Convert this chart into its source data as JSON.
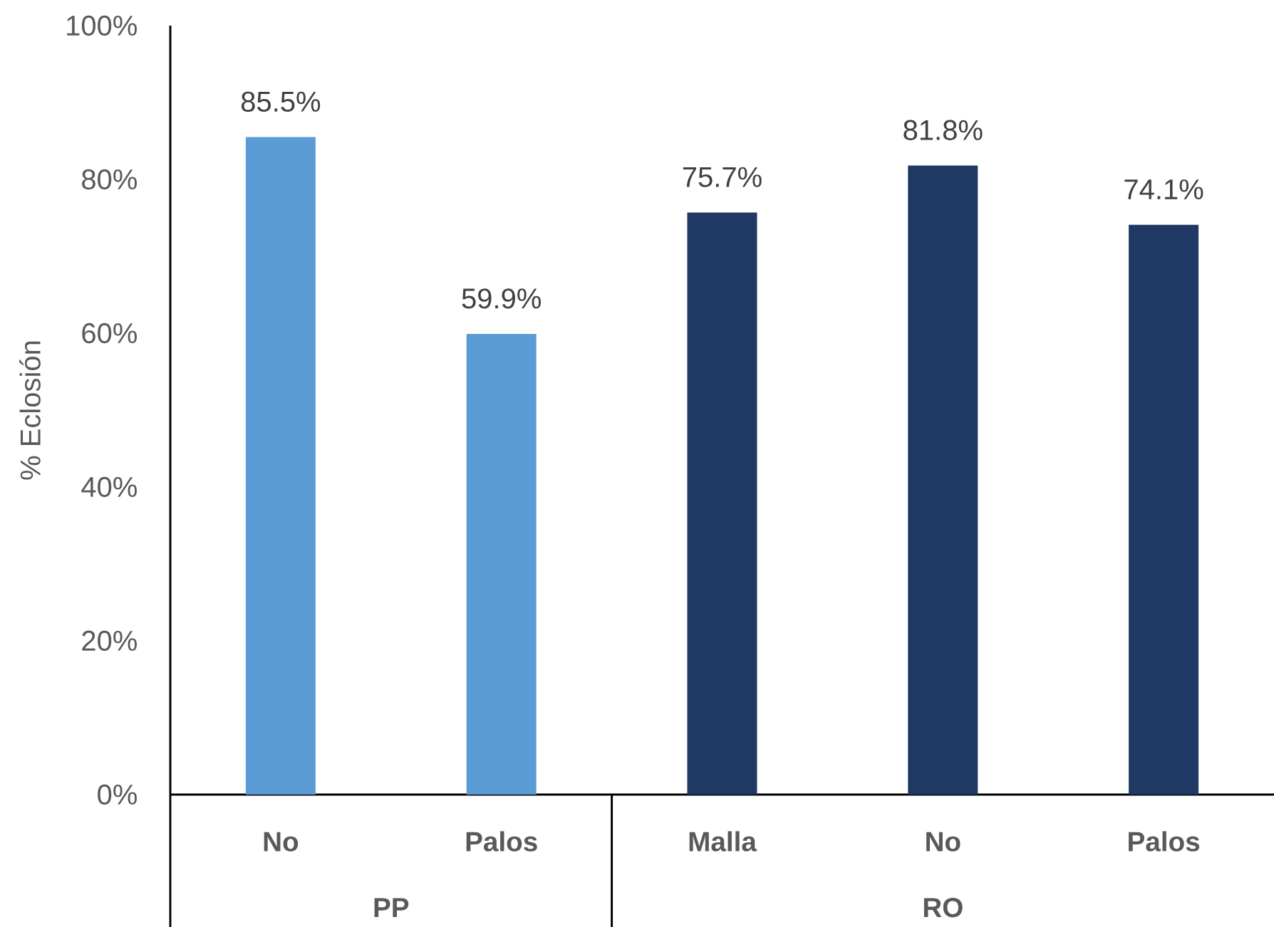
{
  "chart_data": {
    "type": "bar",
    "ylabel": "% Eclosión",
    "categories": [
      "No",
      "Palos",
      "Malla",
      "No",
      "Palos"
    ],
    "values": [
      85.5,
      59.9,
      75.7,
      81.8,
      74.1
    ],
    "colors": [
      "#5b9bd5",
      "#5b9bd5",
      "#203864",
      "#203864",
      "#203864"
    ],
    "value_labels": [
      "85.5%",
      "59.9%",
      "75.7%",
      "81.8%",
      "74.1%"
    ],
    "annotations": [
      "PP",
      "RO"
    ],
    "ylim": [
      0,
      100
    ],
    "yticks": [
      {
        "value": 0,
        "label": "0%"
      },
      {
        "value": 20,
        "label": "20%"
      },
      {
        "value": 40,
        "label": "40%"
      },
      {
        "value": 60,
        "label": "60%"
      },
      {
        "value": 80,
        "label": "80%"
      },
      {
        "value": 100,
        "label": "100%"
      }
    ]
  }
}
